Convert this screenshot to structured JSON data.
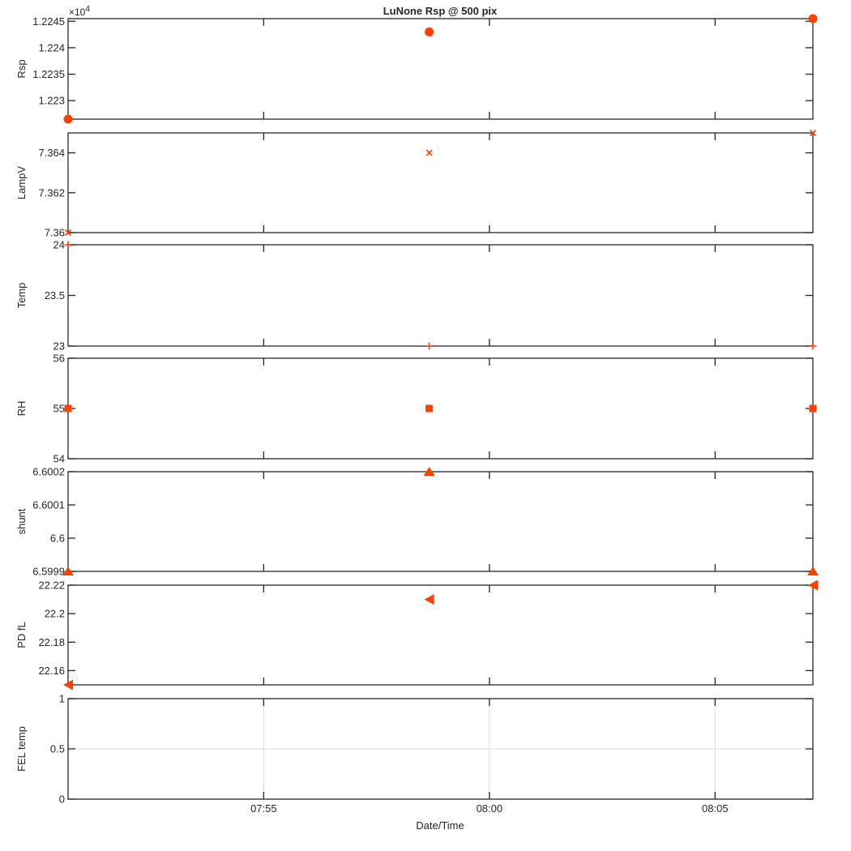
{
  "title": "LuNone Rsp @ 500 pix",
  "colors": {
    "marker": "#ff4000",
    "axis": "#262626",
    "grid": "#dcdcdc",
    "background": "#ffffff"
  },
  "chart_data": {
    "type": "scatter",
    "x_axis": {
      "label": "Date/Time",
      "range": [
        "07:50:40",
        "08:07:10"
      ],
      "ticks": [
        "07:55",
        "08:00",
        "08:05"
      ]
    },
    "subplots": [
      {
        "ylabel": "Rsp",
        "exponent_label": "×10",
        "exponent_power": "4",
        "ylim": [
          1.22265,
          1.22455
        ],
        "ticks": [
          {
            "value": 1.223,
            "label": "1.223"
          },
          {
            "value": 1.2235,
            "label": "1.2235"
          },
          {
            "value": 1.224,
            "label": "1.224"
          },
          {
            "value": 1.2245,
            "label": "1.2245"
          }
        ],
        "marker": "circle",
        "grid": false,
        "points": [
          {
            "x": "07:50:40",
            "y": 1.22265
          },
          {
            "x": "07:58:40",
            "y": 1.2243
          },
          {
            "x": "08:07:10",
            "y": 1.22455
          }
        ]
      },
      {
        "ylabel": "LampV",
        "ylim": [
          7.36,
          7.365
        ],
        "ticks": [
          {
            "value": 7.36,
            "label": "7.36"
          },
          {
            "value": 7.362,
            "label": "7.362"
          },
          {
            "value": 7.364,
            "label": "7.364"
          }
        ],
        "marker": "x",
        "grid": false,
        "points": [
          {
            "x": "07:50:40",
            "y": 7.36
          },
          {
            "x": "07:58:40",
            "y": 7.364
          },
          {
            "x": "08:07:10",
            "y": 7.365
          }
        ]
      },
      {
        "ylabel": "Temp",
        "ylim": [
          23,
          24
        ],
        "ticks": [
          {
            "value": 23,
            "label": "23"
          },
          {
            "value": 23.5,
            "label": "23.5"
          },
          {
            "value": 24,
            "label": "24"
          }
        ],
        "marker": "plus",
        "grid": false,
        "points": [
          {
            "x": "07:50:40",
            "y": 24
          },
          {
            "x": "07:58:40",
            "y": 23
          },
          {
            "x": "08:07:10",
            "y": 23
          }
        ]
      },
      {
        "ylabel": "RH",
        "ylim": [
          54,
          56
        ],
        "ticks": [
          {
            "value": 54,
            "label": "54"
          },
          {
            "value": 55,
            "label": "55"
          },
          {
            "value": 56,
            "label": "56"
          }
        ],
        "marker": "square",
        "grid": false,
        "points": [
          {
            "x": "07:50:40",
            "y": 55
          },
          {
            "x": "07:58:40",
            "y": 55
          },
          {
            "x": "08:07:10",
            "y": 55
          }
        ]
      },
      {
        "ylabel": "shunt",
        "ylim": [
          6.5999,
          6.6002
        ],
        "ticks": [
          {
            "value": 6.5999,
            "label": "6.5999"
          },
          {
            "value": 6.6,
            "label": "6.6"
          },
          {
            "value": 6.6001,
            "label": "6.6001"
          },
          {
            "value": 6.6002,
            "label": "6.6002"
          }
        ],
        "marker": "triangle-up",
        "grid": false,
        "points": [
          {
            "x": "07:50:40",
            "y": 6.5999
          },
          {
            "x": "07:58:40",
            "y": 6.6002
          },
          {
            "x": "08:07:10",
            "y": 6.5999
          }
        ]
      },
      {
        "ylabel": "PD fL",
        "ylim": [
          22.15,
          22.22
        ],
        "ticks": [
          {
            "value": 22.16,
            "label": "22.16"
          },
          {
            "value": 22.18,
            "label": "22.18"
          },
          {
            "value": 22.2,
            "label": "22.2"
          },
          {
            "value": 22.22,
            "label": "22.22"
          }
        ],
        "marker": "triangle-left",
        "grid": false,
        "points": [
          {
            "x": "07:50:40",
            "y": 22.15
          },
          {
            "x": "07:58:40",
            "y": 22.21
          },
          {
            "x": "08:07:10",
            "y": 22.22
          }
        ]
      },
      {
        "ylabel": "FEL temp",
        "ylim": [
          0,
          1
        ],
        "ticks": [
          {
            "value": 0,
            "label": "0"
          },
          {
            "value": 0.5,
            "label": "0.5"
          },
          {
            "value": 1,
            "label": "1"
          }
        ],
        "marker": "none",
        "grid": true,
        "points": []
      }
    ]
  }
}
